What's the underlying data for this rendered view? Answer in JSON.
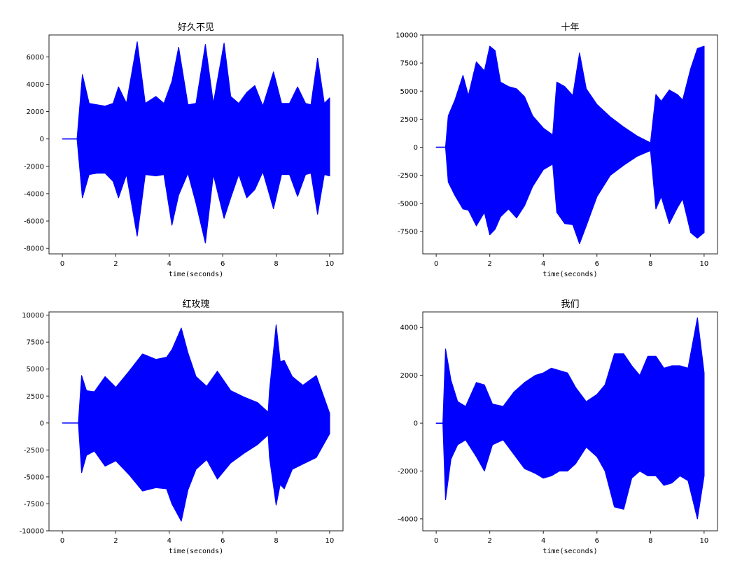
{
  "chart_data": [
    {
      "type": "line",
      "title": "好久不见",
      "xlabel": "time(seconds)",
      "ylabel": "",
      "xlim": [
        -0.5,
        10.5
      ],
      "ylim": [
        -8400,
        7600
      ],
      "xticks": [
        0,
        2,
        4,
        6,
        8,
        10
      ],
      "yticks": [
        -8000,
        -6000,
        -4000,
        -2000,
        0,
        2000,
        4000,
        6000
      ],
      "ytick_labels": [
        "-8000",
        "-6000",
        "-4000",
        "-2000",
        "0",
        "2000",
        "4000",
        "6000"
      ],
      "series": [
        {
          "color": "#0000ff",
          "x": [
            0,
            0.55,
            0.75,
            1.0,
            1.3,
            1.6,
            1.9,
            2.1,
            2.4,
            2.8,
            3.1,
            3.5,
            3.8,
            4.1,
            4.35,
            4.7,
            5.0,
            5.35,
            5.65,
            6.05,
            6.3,
            6.6,
            6.9,
            7.2,
            7.5,
            7.9,
            8.2,
            8.5,
            8.8,
            9.1,
            9.3,
            9.55,
            9.8,
            10.0
          ],
          "y_upper": [
            0,
            0,
            4700,
            2600,
            2500,
            2400,
            2600,
            3800,
            2600,
            7100,
            2600,
            3100,
            2600,
            4200,
            6700,
            2500,
            2600,
            6900,
            2600,
            7000,
            3100,
            2600,
            3400,
            3900,
            2400,
            4900,
            2600,
            2600,
            3800,
            2600,
            2500,
            5900,
            2600,
            3000
          ],
          "y_lower": [
            0,
            0,
            -4300,
            -2600,
            -2500,
            -2500,
            -3100,
            -4300,
            -2600,
            -7100,
            -2600,
            -2700,
            -2600,
            -6300,
            -4100,
            -2500,
            -4700,
            -7600,
            -2600,
            -5800,
            -4300,
            -2600,
            -4300,
            -3700,
            -2400,
            -5100,
            -2600,
            -2600,
            -4200,
            -2600,
            -2500,
            -5500,
            -2600,
            -2700
          ]
        }
      ]
    },
    {
      "type": "line",
      "title": "十年",
      "xlabel": "time(seconds)",
      "ylabel": "",
      "xlim": [
        -0.5,
        10.5
      ],
      "ylim": [
        -9500,
        10000
      ],
      "xticks": [
        0,
        2,
        4,
        6,
        8,
        10
      ],
      "yticks": [
        -7500,
        -5000,
        -2500,
        0,
        2500,
        5000,
        7500,
        10000
      ],
      "ytick_labels": [
        "-7500",
        "-5000",
        "-2500",
        "0",
        "2500",
        "5000",
        "7500",
        "10000"
      ],
      "series": [
        {
          "color": "#0000ff",
          "x": [
            0,
            0.35,
            0.45,
            0.7,
            1.0,
            1.2,
            1.5,
            1.8,
            2.0,
            2.2,
            2.4,
            2.7,
            3.0,
            3.3,
            3.6,
            4.0,
            4.35,
            4.5,
            4.8,
            5.1,
            5.35,
            5.6,
            6.0,
            6.5,
            7.0,
            7.5,
            8.0,
            8.2,
            8.4,
            8.7,
            9.0,
            9.2,
            9.5,
            9.75,
            10.0
          ],
          "y_upper": [
            0,
            0,
            2800,
            4200,
            6400,
            4600,
            7600,
            6800,
            9000,
            8600,
            5800,
            5400,
            5200,
            4500,
            2800,
            1700,
            1100,
            5800,
            5400,
            4600,
            8400,
            5200,
            3800,
            2700,
            1800,
            1000,
            400,
            4700,
            4100,
            5100,
            4700,
            4200,
            7000,
            8800,
            9000
          ],
          "y_lower": [
            0,
            0,
            -3100,
            -4300,
            -5500,
            -5600,
            -7000,
            -5800,
            -7800,
            -7300,
            -6200,
            -5500,
            -6300,
            -5200,
            -3500,
            -2000,
            -1500,
            -5800,
            -6800,
            -6900,
            -8600,
            -7000,
            -4400,
            -2500,
            -1600,
            -800,
            -300,
            -5500,
            -4400,
            -6800,
            -5400,
            -4600,
            -7600,
            -8100,
            -7600
          ]
        }
      ]
    },
    {
      "type": "line",
      "title": "红玫瑰",
      "xlabel": "time(seconds)",
      "ylabel": "",
      "xlim": [
        -0.5,
        10.5
      ],
      "ylim": [
        -10000,
        10300
      ],
      "xticks": [
        0,
        2,
        4,
        6,
        8,
        10
      ],
      "yticks": [
        -10000,
        -7500,
        -5000,
        -2500,
        0,
        2500,
        5000,
        7500,
        10000
      ],
      "ytick_labels": [
        "-10000",
        "-7500",
        "-5000",
        "-2500",
        "0",
        "2500",
        "5000",
        "7500",
        "10000"
      ],
      "series": [
        {
          "color": "#0000ff",
          "x": [
            0,
            0.6,
            0.72,
            0.9,
            1.2,
            1.6,
            2.0,
            2.5,
            3.0,
            3.5,
            3.9,
            4.1,
            4.45,
            4.7,
            5.0,
            5.4,
            5.8,
            6.3,
            6.8,
            7.3,
            7.7,
            7.75,
            8.0,
            8.15,
            8.3,
            8.6,
            9.0,
            9.5,
            10.0
          ],
          "y_upper": [
            0,
            0,
            4400,
            3000,
            2900,
            4300,
            3300,
            4800,
            6400,
            5900,
            6100,
            6800,
            8800,
            6500,
            4300,
            3400,
            4800,
            3000,
            2400,
            1900,
            1000,
            3000,
            9100,
            5700,
            5800,
            4300,
            3500,
            4400,
            900
          ],
          "y_lower": [
            0,
            0,
            -4600,
            -3000,
            -2600,
            -4000,
            -3500,
            -4800,
            -6300,
            -6000,
            -6100,
            -7500,
            -9100,
            -6200,
            -4300,
            -3400,
            -5200,
            -3700,
            -2800,
            -2000,
            -1100,
            -3200,
            -7600,
            -5700,
            -6100,
            -4300,
            -3800,
            -3200,
            -1000
          ]
        }
      ]
    },
    {
      "type": "line",
      "title": "我们",
      "xlabel": "time(seconds)",
      "ylabel": "",
      "xlim": [
        -0.5,
        10.5
      ],
      "ylim": [
        -4500,
        4650
      ],
      "xticks": [
        0,
        2,
        4,
        6,
        8,
        10
      ],
      "yticks": [
        -4000,
        -2000,
        0,
        2000,
        4000
      ],
      "ytick_labels": [
        "-4000",
        "-2000",
        "0",
        "2000",
        "4000"
      ],
      "series": [
        {
          "color": "#0000ff",
          "x": [
            0,
            0.25,
            0.35,
            0.55,
            0.8,
            1.1,
            1.5,
            1.8,
            2.1,
            2.5,
            2.9,
            3.3,
            3.7,
            4.0,
            4.3,
            4.6,
            4.9,
            5.2,
            5.6,
            6.0,
            6.3,
            6.65,
            7.0,
            7.3,
            7.6,
            7.9,
            8.2,
            8.5,
            8.8,
            9.1,
            9.4,
            9.75,
            10.0
          ],
          "y_upper": [
            0,
            0,
            3100,
            1800,
            900,
            700,
            1700,
            1600,
            800,
            700,
            1300,
            1700,
            2000,
            2100,
            2300,
            2200,
            2100,
            1500,
            900,
            1200,
            1600,
            2900,
            2900,
            2400,
            2000,
            2800,
            2800,
            2300,
            2400,
            2400,
            2300,
            4400,
            2100
          ],
          "y_lower": [
            0,
            0,
            -3200,
            -1500,
            -900,
            -700,
            -1400,
            -2000,
            -900,
            -700,
            -1300,
            -1900,
            -2100,
            -2300,
            -2200,
            -2000,
            -2000,
            -1700,
            -1000,
            -1400,
            -2000,
            -3500,
            -3600,
            -2300,
            -2000,
            -2200,
            -2200,
            -2600,
            -2500,
            -2200,
            -2400,
            -4000,
            -2200
          ]
        }
      ]
    }
  ]
}
